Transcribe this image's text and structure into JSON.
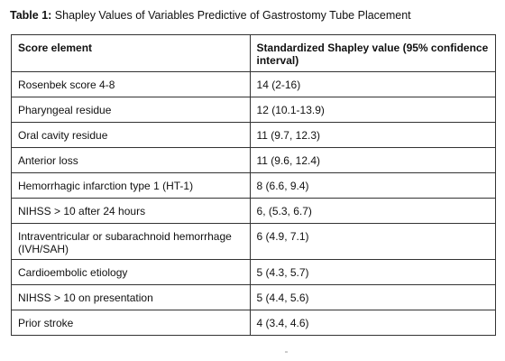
{
  "caption": {
    "label": "Table 1:",
    "text": " Shapley Values of Variables Predictive of Gastrostomy Tube Placement"
  },
  "table": {
    "headers": [
      "Score element",
      "Standardized Shapley value (95% confidence interval)"
    ],
    "rows": [
      [
        "Rosenbek score 4-8",
        "14 (2-16)"
      ],
      [
        "Pharyngeal residue",
        "12 (10.1-13.9)"
      ],
      [
        "Oral cavity residue",
        "11 (9.7, 12.3)"
      ],
      [
        "Anterior loss",
        "11 (9.6, 12.4)"
      ],
      [
        "Hemorrhagic infarction type 1 (HT-1)",
        "8 (6.6, 9.4)"
      ],
      [
        "NIHSS > 10 after 24 hours",
        "6, (5.3, 6.7)"
      ],
      [
        "Intraventricular or subarachnoid hemorrhage (IVH/SAH)",
        "6 (4.9, 7.1)"
      ],
      [
        "Cardioembolic etiology",
        "5 (4.3, 5.7)"
      ],
      [
        "NIHSS > 10 on presentation",
        "5 (4.4, 5.6)"
      ],
      [
        "Prior stroke",
        "4 (3.4, 4.6)"
      ]
    ]
  }
}
